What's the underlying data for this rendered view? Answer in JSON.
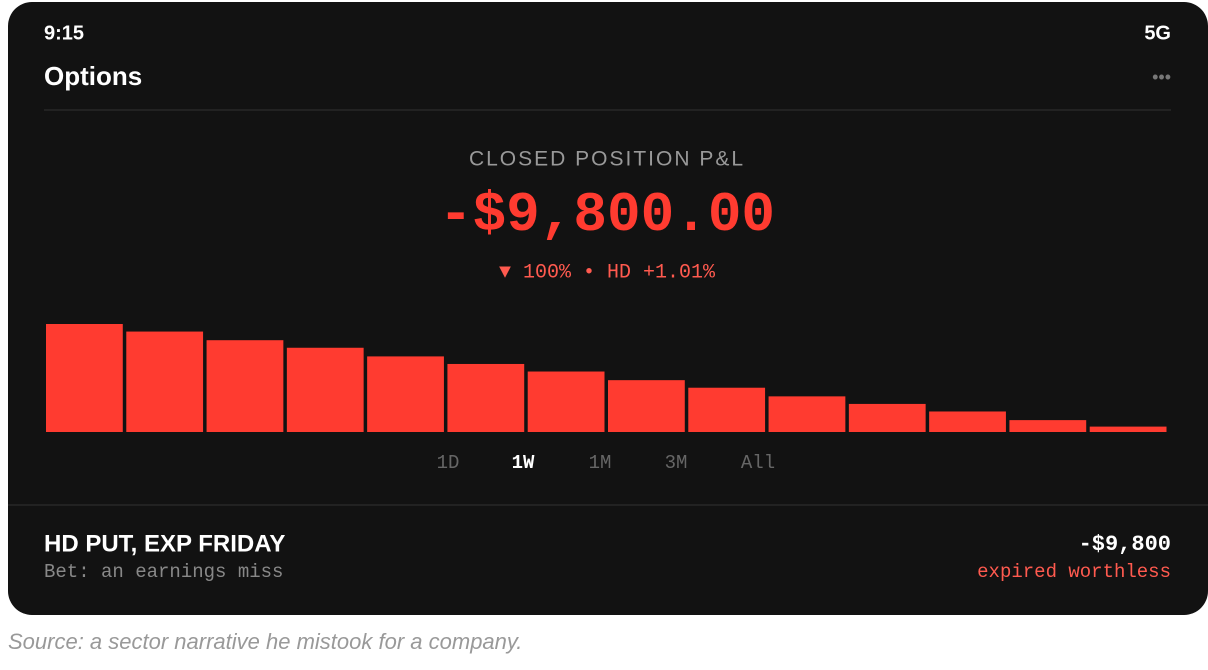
{
  "status_bar": {
    "time": "9:15",
    "network": "5G"
  },
  "header": {
    "title": "Options",
    "menu": "•••"
  },
  "summary": {
    "label": "CLOSED POSITION P&L",
    "amount": "-$9,800.00",
    "change": "▼ 100% • HD +1.01%"
  },
  "chart_data": {
    "type": "bar",
    "color": "#ff3b30",
    "ylim": [
      0,
      100
    ],
    "values": [
      100,
      93,
      85,
      78,
      70,
      63,
      56,
      48,
      41,
      33,
      26,
      19,
      11,
      5
    ]
  },
  "ranges": {
    "options": [
      "1D",
      "1W",
      "1M",
      "3M",
      "All"
    ],
    "selected": 1
  },
  "position": {
    "name": "HD PUT, EXP FRIDAY",
    "note": "Bet: an earnings miss",
    "amount": "-$9,800",
    "status": "expired worthless"
  },
  "caption": "Source: a sector narrative he mistook for a company."
}
